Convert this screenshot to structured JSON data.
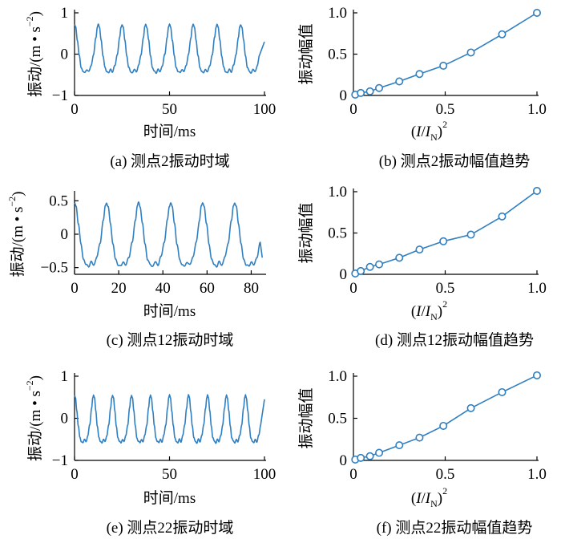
{
  "chart_data": [
    {
      "id": "a",
      "type": "line",
      "caption": "(a)  测点2振动时域",
      "xlabel": "时间/ms",
      "ylabel_main": "振动/(m • s",
      "ylabel_sup": "−2",
      "ylabel_close": ")",
      "xlim": [
        0,
        100
      ],
      "ylim": [
        -1,
        1
      ],
      "xticks": [
        0,
        50,
        100
      ],
      "xtick_labels": [
        "0",
        "50",
        "100"
      ],
      "yticks": [
        -1,
        0,
        1
      ],
      "ytick_labels": [
        "−1",
        "0",
        "1"
      ],
      "signal": {
        "period_ms": 12.5,
        "cycles": 8,
        "max": 0.72,
        "min": -0.45,
        "end_ms": 100,
        "end_value": 0.3
      }
    },
    {
      "id": "b",
      "type": "line",
      "caption": "(b)  测点2振动幅值趋势",
      "xlabel_pre": "(",
      "xlabel_I": "I",
      "xlabel_slash": "/",
      "xlabel_IN": "I",
      "xlabel_sub": "N",
      "xlabel_post": ")",
      "xlabel_sup": "2",
      "ylabel": "振动幅值",
      "xlim": [
        0,
        1
      ],
      "ylim": [
        0,
        1
      ],
      "xticks": [
        0,
        0.5,
        1
      ],
      "xtick_labels": [
        "0",
        "0.5",
        "1.0"
      ],
      "yticks": [
        0,
        0.5,
        1
      ],
      "ytick_labels": [
        "0",
        "0.5",
        "1.0"
      ],
      "x": [
        0.01,
        0.04,
        0.09,
        0.14,
        0.25,
        0.36,
        0.49,
        0.64,
        0.81,
        1.0
      ],
      "y": [
        0.01,
        0.03,
        0.05,
        0.09,
        0.17,
        0.26,
        0.36,
        0.52,
        0.74,
        1.0
      ]
    },
    {
      "id": "c",
      "type": "line",
      "caption": "(c)  测点12振动时域",
      "xlabel": "时间/ms",
      "ylabel_main": "振动/(m • s",
      "ylabel_sup": "−2",
      "ylabel_close": ")",
      "xlim": [
        0,
        86
      ],
      "ylim": [
        -0.6,
        0.6
      ],
      "xticks": [
        0,
        20,
        40,
        60,
        80
      ],
      "xtick_labels": [
        "0",
        "20",
        "40",
        "60",
        "80"
      ],
      "yticks": [
        -0.5,
        0,
        0.5
      ],
      "ytick_labels": [
        "−0.5",
        "0",
        "0.5"
      ],
      "signal": {
        "period_ms": 14.5,
        "cycles": 6,
        "max": 0.47,
        "min": -0.48,
        "end_ms": 85,
        "end_value": -0.35
      }
    },
    {
      "id": "d",
      "type": "line",
      "caption": "(d)  测点12振动幅值趋势",
      "xlabel_pre": "(",
      "xlabel_I": "I",
      "xlabel_slash": "/",
      "xlabel_IN": "I",
      "xlabel_sub": "N",
      "xlabel_post": ")",
      "xlabel_sup": "2",
      "ylabel": "振动幅值",
      "xlim": [
        0,
        1
      ],
      "ylim": [
        0,
        1
      ],
      "xticks": [
        0,
        0.5,
        1
      ],
      "xtick_labels": [
        "0",
        "0.5",
        "1.0"
      ],
      "yticks": [
        0,
        0.5,
        1
      ],
      "ytick_labels": [
        "0",
        "0.5",
        "1.0"
      ],
      "x": [
        0.01,
        0.04,
        0.09,
        0.14,
        0.25,
        0.36,
        0.49,
        0.64,
        0.81,
        1.0
      ],
      "y": [
        0.01,
        0.04,
        0.09,
        0.12,
        0.2,
        0.3,
        0.4,
        0.48,
        0.7,
        1.01
      ]
    },
    {
      "id": "e",
      "type": "line",
      "caption": "(e)  测点22振动时域",
      "xlabel": "时间/ms",
      "ylabel_main": "振动/(m • s",
      "ylabel_sup": "−2",
      "ylabel_close": ")",
      "xlim": [
        0,
        100
      ],
      "ylim": [
        -1,
        1
      ],
      "xticks": [
        0,
        50,
        100
      ],
      "xtick_labels": [
        "0",
        "50",
        "100"
      ],
      "yticks": [
        -1,
        0,
        1
      ],
      "ytick_labels": [
        "−1",
        "0",
        "1"
      ],
      "signal": {
        "period_ms": 10.0,
        "cycles": 10,
        "max": 0.55,
        "min": -0.58,
        "end_ms": 100,
        "end_value": 0.45
      }
    },
    {
      "id": "f",
      "type": "line",
      "caption": "(f)  测点22振动幅值趋势",
      "xlabel_pre": "(",
      "xlabel_I": "I",
      "xlabel_slash": "/",
      "xlabel_IN": "I",
      "xlabel_sub": "N",
      "xlabel_post": ")",
      "xlabel_sup": "2",
      "ylabel": "振动幅值",
      "xlim": [
        0,
        1
      ],
      "ylim": [
        0,
        1
      ],
      "xticks": [
        0,
        0.5,
        1
      ],
      "xtick_labels": [
        "0",
        "0.5",
        "1.0"
      ],
      "yticks": [
        0,
        0.5,
        1
      ],
      "ytick_labels": [
        "0",
        "0.5",
        "1.0"
      ],
      "x": [
        0.01,
        0.04,
        0.09,
        0.14,
        0.25,
        0.36,
        0.49,
        0.64,
        0.81,
        1.0
      ],
      "y": [
        0.01,
        0.03,
        0.05,
        0.09,
        0.18,
        0.27,
        0.41,
        0.62,
        0.81,
        1.01
      ]
    }
  ],
  "colors": {
    "series": "#2f7fc1",
    "axis": "#000000"
  }
}
